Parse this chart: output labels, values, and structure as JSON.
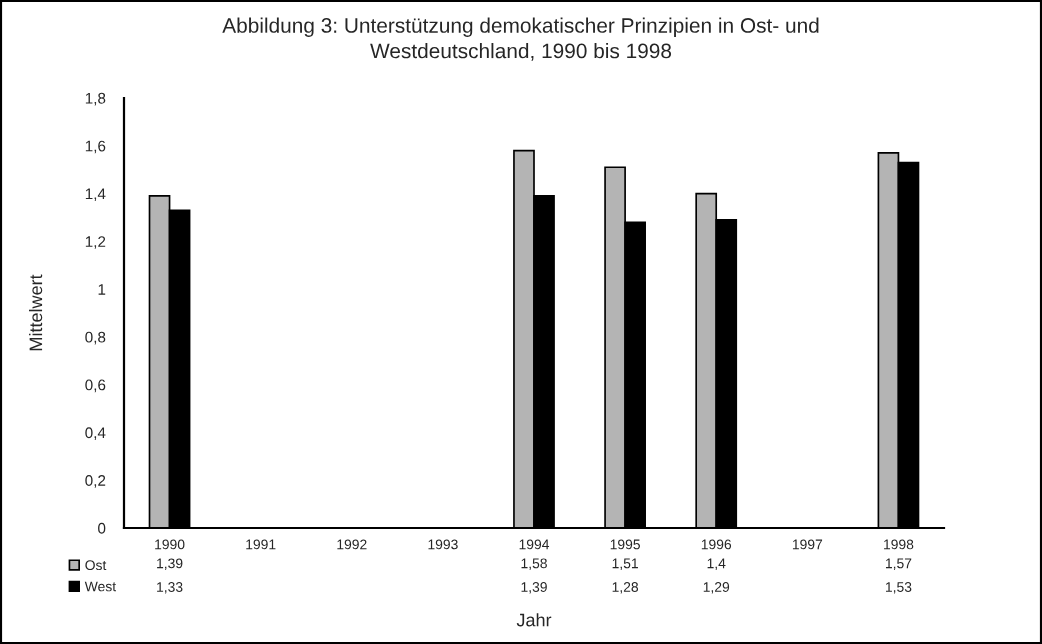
{
  "chart_data": {
    "type": "bar",
    "title": "Abbildung 3: Unterstützung demokatischer Prinzipien in Ost- und\nWestdeutschland, 1990 bis 1998",
    "xlabel": "Jahr",
    "ylabel": "Mittelwert",
    "categories": [
      "1990",
      "1991",
      "1992",
      "1993",
      "1994",
      "1995",
      "1996",
      "1997",
      "1998"
    ],
    "series": [
      {
        "name": "Ost",
        "color": "#b4b4b4",
        "values": [
          1.39,
          null,
          null,
          null,
          1.58,
          1.51,
          1.4,
          null,
          1.57
        ],
        "value_labels": [
          "1,39",
          null,
          null,
          null,
          "1,58",
          "1,51",
          "1,4",
          null,
          "1,57"
        ]
      },
      {
        "name": "West",
        "color": "#000000",
        "values": [
          1.33,
          null,
          null,
          null,
          1.39,
          1.28,
          1.29,
          null,
          1.53
        ],
        "value_labels": [
          "1,33",
          null,
          null,
          null,
          "1,39",
          "1,28",
          "1,29",
          null,
          "1,53"
        ]
      }
    ],
    "ylim": [
      0,
      1.8
    ],
    "yticks": [
      0,
      {
        "value": 0.2,
        "label": "0,2"
      },
      {
        "value": 0.4,
        "label": "0,4"
      },
      {
        "value": 0.6,
        "label": "0,6"
      },
      {
        "value": 0.8,
        "label": "0,8"
      },
      1,
      {
        "value": 1.2,
        "label": "1,2"
      },
      {
        "value": 1.4,
        "label": "1,4"
      },
      {
        "value": 1.6,
        "label": "1,6"
      },
      {
        "value": 1.8,
        "label": "1,8"
      }
    ],
    "grid": false,
    "legend": "bottom left"
  }
}
